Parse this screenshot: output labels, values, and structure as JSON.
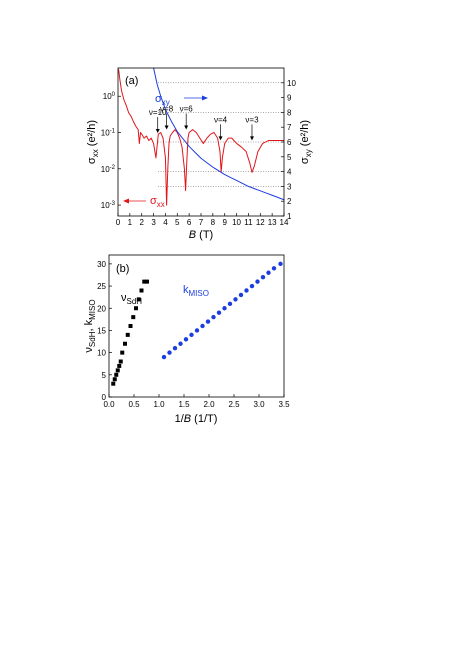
{
  "chart_data": [
    {
      "panel": "(a)",
      "type": "line",
      "xlabel_italic": "B",
      "xlabel_unit": " (T)",
      "xlim": [
        0,
        14
      ],
      "x_ticks": [
        0,
        1,
        2,
        3,
        4,
        5,
        6,
        7,
        8,
        9,
        10,
        11,
        12,
        13,
        14
      ],
      "left_axis": {
        "label_base": "σ",
        "label_sub": "xx",
        "label_unit": " (e²/h)",
        "scale": "log",
        "ylim": [
          0.0005,
          6
        ],
        "ticks": [
          {
            "value": 0.001,
            "label": "10",
            "exp": "-3"
          },
          {
            "value": 0.01,
            "label": "10",
            "exp": "-2"
          },
          {
            "value": 0.1,
            "label": "10",
            "exp": "-1"
          },
          {
            "value": 1,
            "label": "10",
            "exp": "0"
          }
        ]
      },
      "right_axis": {
        "label_base": "σ",
        "label_sub": "xy",
        "label_unit": " (e²/h)",
        "scale": "linear",
        "ylim": [
          1,
          11
        ],
        "ticks": [
          1,
          2,
          3,
          4,
          5,
          6,
          7,
          8,
          9,
          10
        ],
        "plateau_gridlines": [
          3,
          4,
          6,
          8,
          10
        ]
      },
      "series": [
        {
          "label_base": "σ",
          "label_sub": "xx",
          "axis": "left",
          "color": "#e0161b",
          "arrow": "left",
          "x": [
            0.05,
            0.15,
            0.3,
            0.5,
            0.7,
            0.9,
            1.1,
            1.3,
            1.5,
            1.7,
            1.8,
            1.9,
            2.0,
            2.2,
            2.4,
            2.6,
            2.8,
            3.0,
            3.2,
            3.4,
            3.6,
            3.8,
            4.0,
            4.1,
            4.2,
            4.3,
            4.4,
            4.6,
            4.8,
            5.0,
            5.2,
            5.4,
            5.6,
            5.7,
            5.8,
            5.9,
            6.0,
            6.3,
            6.6,
            6.9,
            7.2,
            7.5,
            7.8,
            8.1,
            8.4,
            8.6,
            8.7,
            8.8,
            9.0,
            9.3,
            9.6,
            10.0,
            10.4,
            10.8,
            11.1,
            11.3,
            11.5,
            11.8,
            12.2,
            12.7,
            13.2,
            13.7,
            14.0
          ],
          "y": [
            5.5,
            3.0,
            1.4,
            0.8,
            0.55,
            0.35,
            0.28,
            0.2,
            0.15,
            0.12,
            0.05,
            0.1,
            0.09,
            0.07,
            0.08,
            0.06,
            0.07,
            0.05,
            0.02,
            0.09,
            0.1,
            0.07,
            0.02,
            0.001,
            0.01,
            0.05,
            0.08,
            0.1,
            0.12,
            0.1,
            0.07,
            0.04,
            0.01,
            0.0025,
            0.015,
            0.07,
            0.1,
            0.12,
            0.1,
            0.07,
            0.05,
            0.07,
            0.09,
            0.1,
            0.07,
            0.03,
            0.008,
            0.02,
            0.05,
            0.07,
            0.07,
            0.05,
            0.04,
            0.03,
            0.015,
            0.008,
            0.012,
            0.03,
            0.05,
            0.06,
            0.06,
            0.06,
            0.06
          ]
        },
        {
          "label_base": "σ",
          "label_sub": "xy",
          "axis": "right",
          "color": "#1c3de0",
          "arrow": "right",
          "x": [
            3.0,
            3.3,
            3.6,
            4.0,
            4.5,
            5.0,
            5.5,
            6.0,
            6.5,
            7.0,
            7.5,
            8.0,
            8.5,
            9.0,
            9.5,
            10.0,
            10.5,
            11.0,
            11.5,
            12.0,
            12.5,
            13.0,
            13.5,
            14.0
          ],
          "y": [
            11.0,
            9.9,
            9.1,
            8.2,
            7.4,
            6.7,
            6.2,
            5.7,
            5.3,
            4.9,
            4.6,
            4.3,
            4.05,
            3.8,
            3.6,
            3.4,
            3.2,
            3.0,
            2.85,
            2.7,
            2.55,
            2.4,
            2.25,
            2.1
          ]
        }
      ],
      "annotations": [
        {
          "text": "ν=10",
          "x": 3.35,
          "y_arrow_tip": 0.08
        },
        {
          "text": "ν=8",
          "x": 4.1,
          "y_arrow_tip": 0.1
        },
        {
          "text": "ν=6",
          "x": 5.75,
          "y_arrow_tip": 0.1
        },
        {
          "text": "ν=4",
          "x": 8.65,
          "y_arrow_tip": 0.05
        },
        {
          "text": "ν=3",
          "x": 11.3,
          "y_arrow_tip": 0.05
        }
      ]
    },
    {
      "panel": "(b)",
      "type": "scatter",
      "xlabel_base": "1/",
      "xlabel_italic": "B",
      "xlabel_unit": " (1/T)",
      "xlim": [
        0,
        3.5
      ],
      "ylim": [
        0,
        32
      ],
      "x_ticks": [
        0.0,
        0.5,
        1.0,
        1.5,
        2.0,
        2.5,
        3.0,
        3.5
      ],
      "y_ticks": [
        0,
        5,
        10,
        15,
        20,
        25,
        30
      ],
      "ylabel_parts": [
        {
          "base": "ν",
          "sub": "SdH"
        },
        {
          "base": ", k",
          "sub": "MISO"
        }
      ],
      "series": [
        {
          "label_base": "ν",
          "label_sub": "SdH",
          "marker": "square",
          "color": "#000000",
          "x": [
            0.085,
            0.115,
            0.145,
            0.175,
            0.205,
            0.235,
            0.265,
            0.32,
            0.375,
            0.43,
            0.485,
            0.54,
            0.595,
            0.65,
            0.705,
            0.76
          ],
          "y": [
            3,
            4,
            5,
            6,
            7,
            8,
            10,
            12,
            14,
            16,
            18,
            20,
            22,
            24,
            26,
            26
          ]
        },
        {
          "label_base": "k",
          "label_sub": "MISO",
          "marker": "circle",
          "color": "#1c3de0",
          "x": [
            1.1,
            1.21,
            1.32,
            1.43,
            1.54,
            1.65,
            1.76,
            1.87,
            1.98,
            2.09,
            2.2,
            2.31,
            2.42,
            2.53,
            2.64,
            2.75,
            2.86,
            2.97,
            3.08,
            3.19,
            3.3,
            3.43
          ],
          "y": [
            9,
            10,
            11,
            12,
            13,
            14,
            15,
            16,
            17,
            18,
            19,
            20,
            21,
            22,
            23,
            24,
            25,
            26,
            27,
            28,
            29,
            30
          ]
        }
      ]
    }
  ]
}
